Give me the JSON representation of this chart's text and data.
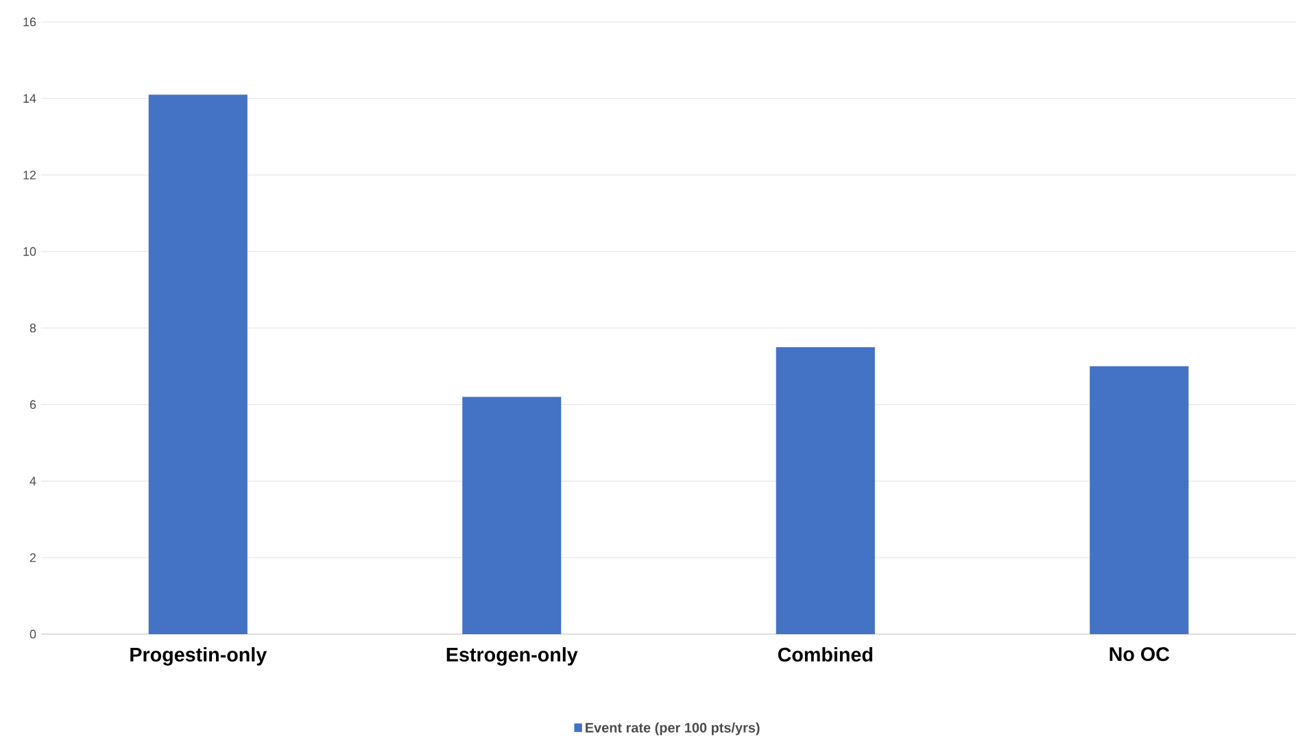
{
  "chart_data": {
    "type": "bar",
    "categories": [
      "Progestin-only",
      "Estrogen-only",
      "Combined",
      "No OC"
    ],
    "series": [
      {
        "name": "Event rate (per 100 pts/yrs)",
        "color": "#4472c4",
        "values": [
          14.1,
          6.2,
          7.5,
          7.0
        ]
      }
    ],
    "ylim": [
      0,
      16
    ],
    "yticks": [
      0,
      2,
      4,
      6,
      8,
      10,
      12,
      14,
      16
    ],
    "grid": "y",
    "legend": "bottom"
  }
}
